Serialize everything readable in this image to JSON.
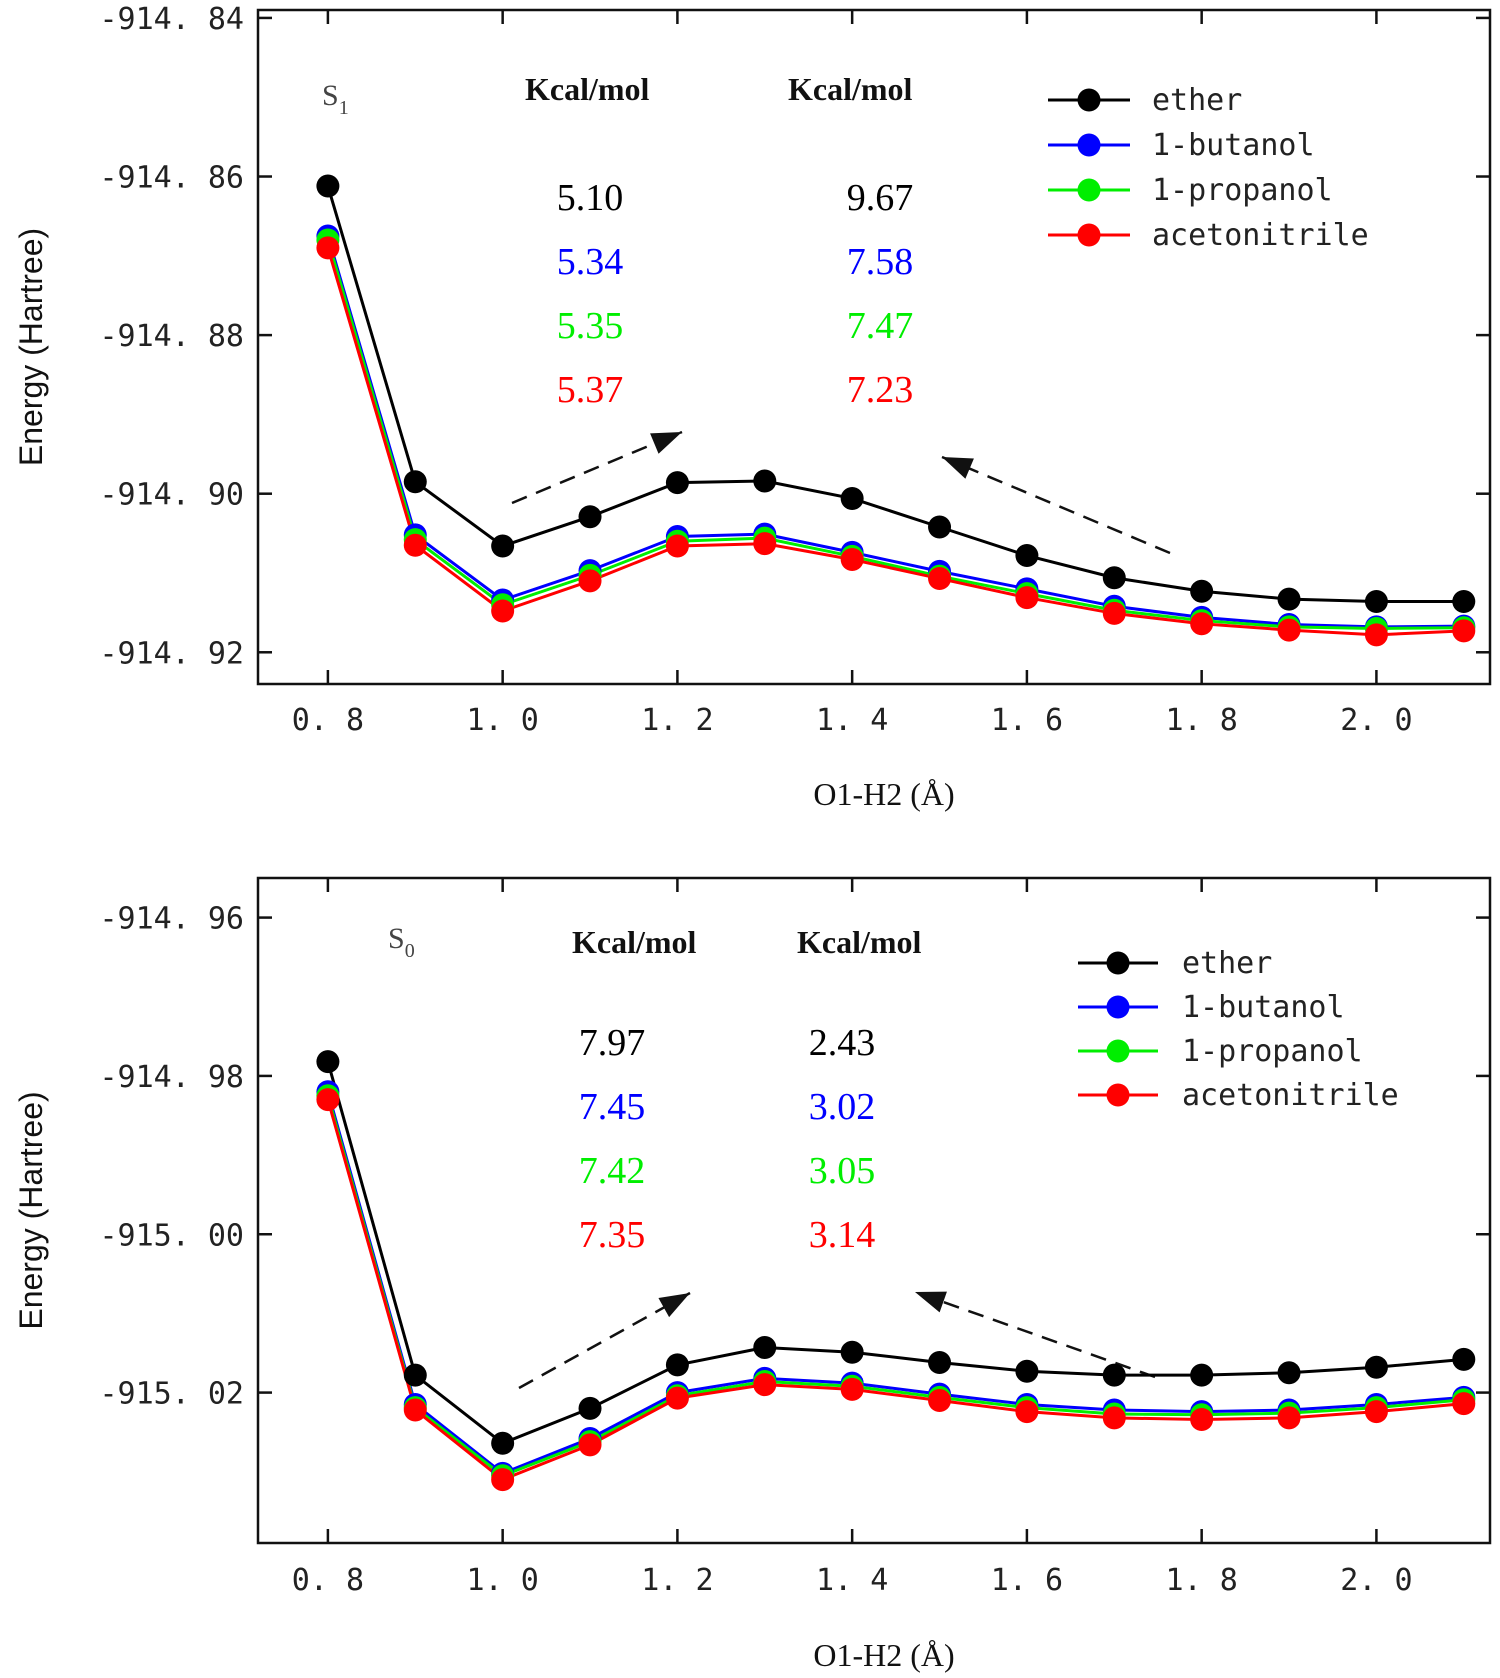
{
  "chart_data": [
    {
      "type": "line",
      "state_label": "S",
      "state_subscript": "1",
      "xlabel": "O1-H2 (Å)",
      "ylabel": "Energy (Hartree)",
      "xlim": [
        0.72,
        2.13
      ],
      "ylim": [
        -914.924,
        -914.839
      ],
      "x_ticks": [
        0.8,
        1.0,
        1.2,
        1.4,
        1.6,
        1.8,
        2.0
      ],
      "x_tick_labels": [
        "0. 8",
        "1. 0",
        "1. 2",
        "1. 4",
        "1. 6",
        "1. 8",
        "2. 0"
      ],
      "y_ticks": [
        -914.92,
        -914.9,
        -914.88,
        -914.86,
        -914.84
      ],
      "y_tick_labels": [
        "-914. 92",
        "-914. 90",
        "-914. 88",
        "-914. 86",
        "-914. 84"
      ],
      "legend_position": "top-right",
      "x": [
        0.8,
        0.9,
        1.0,
        1.1,
        1.2,
        1.3,
        1.4,
        1.5,
        1.6,
        1.7,
        1.8,
        1.9,
        2.0,
        2.1
      ],
      "series": [
        {
          "name": "ether",
          "color": "#000000",
          "values": [
            -914.8612,
            -914.8985,
            -914.9066,
            -914.9029,
            -914.8986,
            -914.8984,
            -914.9006,
            -914.9042,
            -914.9078,
            -914.9106,
            -914.9123,
            -914.9133,
            -914.9136,
            -914.9136
          ]
        },
        {
          "name": "1-butanol",
          "color": "#0000ff",
          "values": [
            -914.8675,
            -914.9052,
            -914.9134,
            -914.9097,
            -914.9054,
            -914.9051,
            -914.9074,
            -914.9098,
            -914.912,
            -914.9142,
            -914.9156,
            -914.9165,
            -914.9168,
            -914.9167
          ]
        },
        {
          "name": "1-propanol",
          "color": "#00ee00",
          "values": [
            -914.868,
            -914.9058,
            -914.914,
            -914.9103,
            -914.906,
            -914.9056,
            -914.9079,
            -914.9104,
            -914.9126,
            -914.9147,
            -914.916,
            -914.9168,
            -914.917,
            -914.9169
          ]
        },
        {
          "name": "acetonitrile",
          "color": "#ff0000",
          "values": [
            -914.869,
            -914.9065,
            -914.9148,
            -914.911,
            -914.9066,
            -914.9063,
            -914.9083,
            -914.9107,
            -914.9131,
            -914.9151,
            -914.9164,
            -914.9172,
            -914.9178,
            -914.9173
          ]
        }
      ],
      "annotations": {
        "unit_left": "Kcal/mol",
        "unit_right": "Kcal/mol",
        "values_left": [
          "5.10",
          "5.34",
          "5.35",
          "5.37"
        ],
        "values_right": [
          "9.67",
          "7.58",
          "7.47",
          "7.23"
        ]
      }
    },
    {
      "type": "line",
      "state_label": "S",
      "state_subscript": "0",
      "xlabel": "O1-H2 (Å)",
      "ylabel": "Energy (Hartree)",
      "xlim": [
        0.72,
        2.13
      ],
      "ylim": [
        -915.039,
        -914.955
      ],
      "x_ticks": [
        0.8,
        1.0,
        1.2,
        1.4,
        1.6,
        1.8,
        2.0
      ],
      "x_tick_labels": [
        "0. 8",
        "1. 0",
        "1. 2",
        "1. 4",
        "1. 6",
        "1. 8",
        "2. 0"
      ],
      "y_ticks": [
        -915.02,
        -915.0,
        -914.98,
        -914.96
      ],
      "y_tick_labels": [
        "-915. 02",
        "-915. 00",
        "-914. 98",
        "-914. 96"
      ],
      "legend_position": "top-right",
      "x": [
        0.8,
        0.9,
        1.0,
        1.1,
        1.2,
        1.3,
        1.4,
        1.5,
        1.6,
        1.7,
        1.8,
        1.9,
        2.0,
        2.1
      ],
      "series": [
        {
          "name": "ether",
          "color": "#000000",
          "values": [
            -914.9782,
            -915.0178,
            -915.0264,
            -915.022,
            -915.0165,
            -915.0143,
            -915.0149,
            -915.0162,
            -915.0173,
            -915.0178,
            -915.0178,
            -915.0175,
            -915.0168,
            -915.0158
          ]
        },
        {
          "name": "1-butanol",
          "color": "#0000ff",
          "values": [
            -914.982,
            -915.0215,
            -915.0302,
            -915.0258,
            -915.02,
            -915.0182,
            -915.0188,
            -915.0202,
            -915.0215,
            -915.0222,
            -915.0224,
            -915.0222,
            -915.0215,
            -915.0206
          ]
        },
        {
          "name": "1-propanol",
          "color": "#00ee00",
          "values": [
            -914.9825,
            -915.0219,
            -915.0305,
            -915.0262,
            -915.0204,
            -915.0186,
            -915.0192,
            -915.0206,
            -915.0219,
            -915.0227,
            -915.0228,
            -915.0226,
            -915.0219,
            -915.0209
          ]
        },
        {
          "name": "acetonitrile",
          "color": "#ff0000",
          "values": [
            -914.983,
            -915.0222,
            -915.031,
            -915.0266,
            -915.0207,
            -915.019,
            -915.0196,
            -915.021,
            -915.0224,
            -915.0232,
            -915.0234,
            -915.0232,
            -915.0224,
            -915.0214
          ]
        }
      ],
      "annotations": {
        "unit_left": "Kcal/mol",
        "unit_right": "Kcal/mol",
        "values_left": [
          "7.97",
          "7.45",
          "7.42",
          "7.35"
        ],
        "values_right": [
          "2.43",
          "3.02",
          "3.05",
          "3.14"
        ]
      }
    }
  ]
}
